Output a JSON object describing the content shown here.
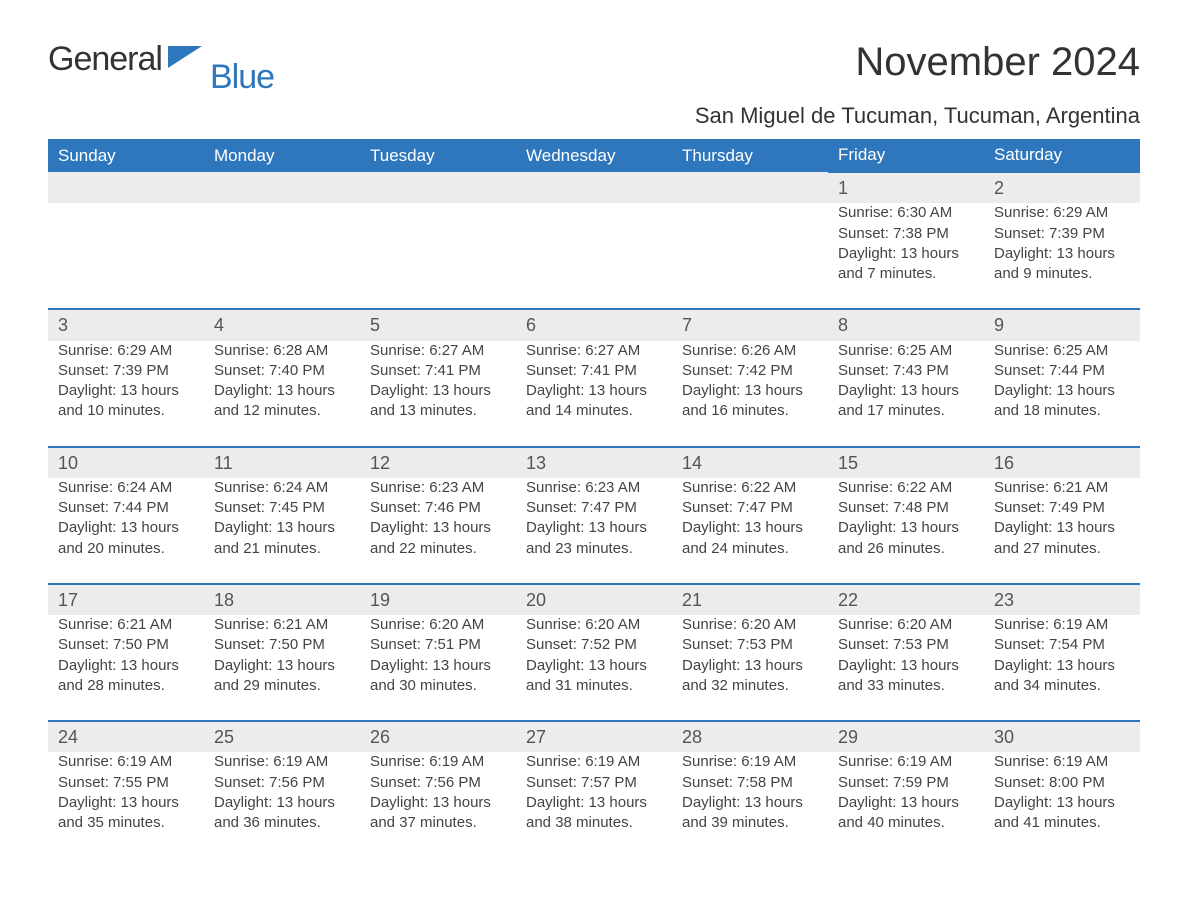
{
  "logo": {
    "word1": "General",
    "word2": "Blue",
    "accent_color": "#2f77bc"
  },
  "title": "November 2024",
  "location": "San Miguel de Tucuman, Tucuman, Argentina",
  "day_headers": [
    "Sunday",
    "Monday",
    "Tuesday",
    "Wednesday",
    "Thursday",
    "Friday",
    "Saturday"
  ],
  "colors": {
    "header_bg": "#2f77bc",
    "header_text": "#ffffff",
    "daynum_bg": "#ececec",
    "border": "#2f77bc",
    "text": "#3a3a3a"
  },
  "weeks": [
    [
      null,
      null,
      null,
      null,
      null,
      {
        "n": "1",
        "sunrise": "Sunrise: 6:30 AM",
        "sunset": "Sunset: 7:38 PM",
        "daylight": "Daylight: 13 hours and 7 minutes."
      },
      {
        "n": "2",
        "sunrise": "Sunrise: 6:29 AM",
        "sunset": "Sunset: 7:39 PM",
        "daylight": "Daylight: 13 hours and 9 minutes."
      }
    ],
    [
      {
        "n": "3",
        "sunrise": "Sunrise: 6:29 AM",
        "sunset": "Sunset: 7:39 PM",
        "daylight": "Daylight: 13 hours and 10 minutes."
      },
      {
        "n": "4",
        "sunrise": "Sunrise: 6:28 AM",
        "sunset": "Sunset: 7:40 PM",
        "daylight": "Daylight: 13 hours and 12 minutes."
      },
      {
        "n": "5",
        "sunrise": "Sunrise: 6:27 AM",
        "sunset": "Sunset: 7:41 PM",
        "daylight": "Daylight: 13 hours and 13 minutes."
      },
      {
        "n": "6",
        "sunrise": "Sunrise: 6:27 AM",
        "sunset": "Sunset: 7:41 PM",
        "daylight": "Daylight: 13 hours and 14 minutes."
      },
      {
        "n": "7",
        "sunrise": "Sunrise: 6:26 AM",
        "sunset": "Sunset: 7:42 PM",
        "daylight": "Daylight: 13 hours and 16 minutes."
      },
      {
        "n": "8",
        "sunrise": "Sunrise: 6:25 AM",
        "sunset": "Sunset: 7:43 PM",
        "daylight": "Daylight: 13 hours and 17 minutes."
      },
      {
        "n": "9",
        "sunrise": "Sunrise: 6:25 AM",
        "sunset": "Sunset: 7:44 PM",
        "daylight": "Daylight: 13 hours and 18 minutes."
      }
    ],
    [
      {
        "n": "10",
        "sunrise": "Sunrise: 6:24 AM",
        "sunset": "Sunset: 7:44 PM",
        "daylight": "Daylight: 13 hours and 20 minutes."
      },
      {
        "n": "11",
        "sunrise": "Sunrise: 6:24 AM",
        "sunset": "Sunset: 7:45 PM",
        "daylight": "Daylight: 13 hours and 21 minutes."
      },
      {
        "n": "12",
        "sunrise": "Sunrise: 6:23 AM",
        "sunset": "Sunset: 7:46 PM",
        "daylight": "Daylight: 13 hours and 22 minutes."
      },
      {
        "n": "13",
        "sunrise": "Sunrise: 6:23 AM",
        "sunset": "Sunset: 7:47 PM",
        "daylight": "Daylight: 13 hours and 23 minutes."
      },
      {
        "n": "14",
        "sunrise": "Sunrise: 6:22 AM",
        "sunset": "Sunset: 7:47 PM",
        "daylight": "Daylight: 13 hours and 24 minutes."
      },
      {
        "n": "15",
        "sunrise": "Sunrise: 6:22 AM",
        "sunset": "Sunset: 7:48 PM",
        "daylight": "Daylight: 13 hours and 26 minutes."
      },
      {
        "n": "16",
        "sunrise": "Sunrise: 6:21 AM",
        "sunset": "Sunset: 7:49 PM",
        "daylight": "Daylight: 13 hours and 27 minutes."
      }
    ],
    [
      {
        "n": "17",
        "sunrise": "Sunrise: 6:21 AM",
        "sunset": "Sunset: 7:50 PM",
        "daylight": "Daylight: 13 hours and 28 minutes."
      },
      {
        "n": "18",
        "sunrise": "Sunrise: 6:21 AM",
        "sunset": "Sunset: 7:50 PM",
        "daylight": "Daylight: 13 hours and 29 minutes."
      },
      {
        "n": "19",
        "sunrise": "Sunrise: 6:20 AM",
        "sunset": "Sunset: 7:51 PM",
        "daylight": "Daylight: 13 hours and 30 minutes."
      },
      {
        "n": "20",
        "sunrise": "Sunrise: 6:20 AM",
        "sunset": "Sunset: 7:52 PM",
        "daylight": "Daylight: 13 hours and 31 minutes."
      },
      {
        "n": "21",
        "sunrise": "Sunrise: 6:20 AM",
        "sunset": "Sunset: 7:53 PM",
        "daylight": "Daylight: 13 hours and 32 minutes."
      },
      {
        "n": "22",
        "sunrise": "Sunrise: 6:20 AM",
        "sunset": "Sunset: 7:53 PM",
        "daylight": "Daylight: 13 hours and 33 minutes."
      },
      {
        "n": "23",
        "sunrise": "Sunrise: 6:19 AM",
        "sunset": "Sunset: 7:54 PM",
        "daylight": "Daylight: 13 hours and 34 minutes."
      }
    ],
    [
      {
        "n": "24",
        "sunrise": "Sunrise: 6:19 AM",
        "sunset": "Sunset: 7:55 PM",
        "daylight": "Daylight: 13 hours and 35 minutes."
      },
      {
        "n": "25",
        "sunrise": "Sunrise: 6:19 AM",
        "sunset": "Sunset: 7:56 PM",
        "daylight": "Daylight: 13 hours and 36 minutes."
      },
      {
        "n": "26",
        "sunrise": "Sunrise: 6:19 AM",
        "sunset": "Sunset: 7:56 PM",
        "daylight": "Daylight: 13 hours and 37 minutes."
      },
      {
        "n": "27",
        "sunrise": "Sunrise: 6:19 AM",
        "sunset": "Sunset: 7:57 PM",
        "daylight": "Daylight: 13 hours and 38 minutes."
      },
      {
        "n": "28",
        "sunrise": "Sunrise: 6:19 AM",
        "sunset": "Sunset: 7:58 PM",
        "daylight": "Daylight: 13 hours and 39 minutes."
      },
      {
        "n": "29",
        "sunrise": "Sunrise: 6:19 AM",
        "sunset": "Sunset: 7:59 PM",
        "daylight": "Daylight: 13 hours and 40 minutes."
      },
      {
        "n": "30",
        "sunrise": "Sunrise: 6:19 AM",
        "sunset": "Sunset: 8:00 PM",
        "daylight": "Daylight: 13 hours and 41 minutes."
      }
    ]
  ]
}
